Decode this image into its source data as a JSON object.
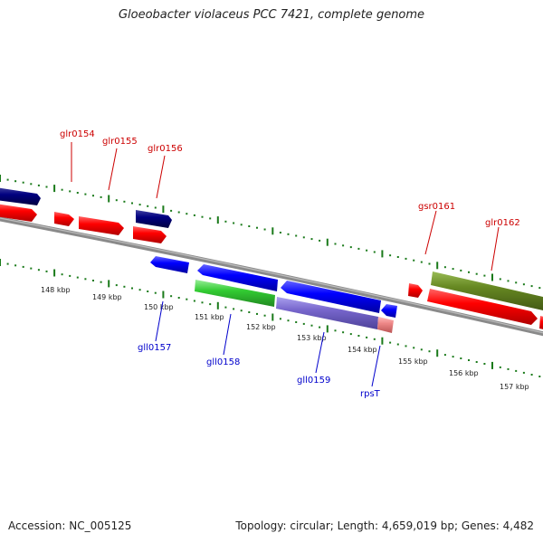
{
  "title": "Gloeobacter violaceus PCC 7421, complete genome",
  "footer": {
    "accession_label": "Accession: NC_005125",
    "topology_label": "Topology: circular; Length: 4,659,019 bp; Genes: 4,482"
  },
  "colors": {
    "backbone": "#8a8a8a",
    "tick": "#1a7a1a",
    "red_gene": "#ff0000",
    "navy_gene": "#000080",
    "blue_gene": "#0000ff",
    "green_gene": "#33cc33",
    "olive_gene": "#668822",
    "purple_gene": "#7766cc",
    "pink_gene": "#ee8888",
    "label_top": "#cc0000",
    "label_bottom": "#0000cc"
  },
  "ticks": [
    {
      "label": "148 kbp"
    },
    {
      "label": "149 kbp"
    },
    {
      "label": "150 kbp"
    },
    {
      "label": "151 kbp"
    },
    {
      "label": "152 kbp"
    },
    {
      "label": "153 kbp"
    },
    {
      "label": "154 kbp"
    },
    {
      "label": "155 kbp"
    },
    {
      "label": "156 kbp"
    },
    {
      "label": "157 kbp"
    }
  ],
  "gene_labels_top": [
    {
      "name": "glr0154"
    },
    {
      "name": "glr0155"
    },
    {
      "name": "glr0156"
    },
    {
      "name": "gsr0161"
    },
    {
      "name": "glr0162"
    }
  ],
  "gene_labels_bottom": [
    {
      "name": "gll0157"
    },
    {
      "name": "gll0158"
    },
    {
      "name": "gll0159"
    },
    {
      "name": "rpsT"
    }
  ]
}
